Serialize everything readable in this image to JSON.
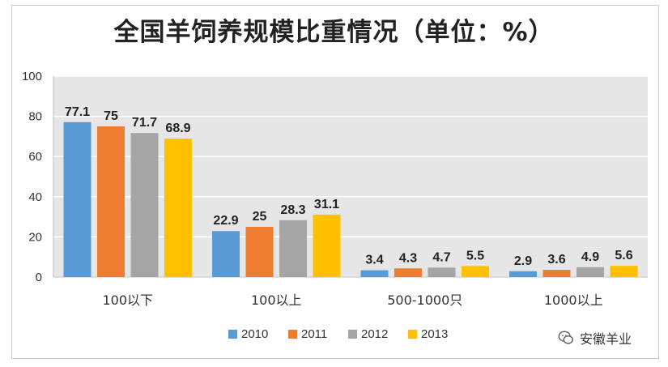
{
  "chart_data": {
    "type": "bar",
    "title": "全国羊饲养规模比重情况（单位：%）",
    "categories": [
      "100以下",
      "100以上",
      "500-1000只",
      "1000以上"
    ],
    "series": [
      {
        "name": "2010",
        "color": "#5b9bd5",
        "values": [
          77.1,
          22.9,
          3.4,
          2.9
        ]
      },
      {
        "name": "2011",
        "color": "#ed7d31",
        "values": [
          75,
          25,
          4.3,
          3.6
        ]
      },
      {
        "name": "2012",
        "color": "#a5a5a5",
        "values": [
          71.7,
          28.3,
          4.7,
          4.9
        ]
      },
      {
        "name": "2013",
        "color": "#ffc000",
        "values": [
          68.9,
          31.1,
          5.5,
          5.6
        ]
      }
    ],
    "ylim": [
      0,
      100
    ],
    "yticks": [
      0,
      20,
      40,
      60,
      80,
      100
    ],
    "grid": true,
    "legend": "bottom"
  },
  "watermark": {
    "text": "安徽羊业",
    "icon": "wechat-icon"
  }
}
